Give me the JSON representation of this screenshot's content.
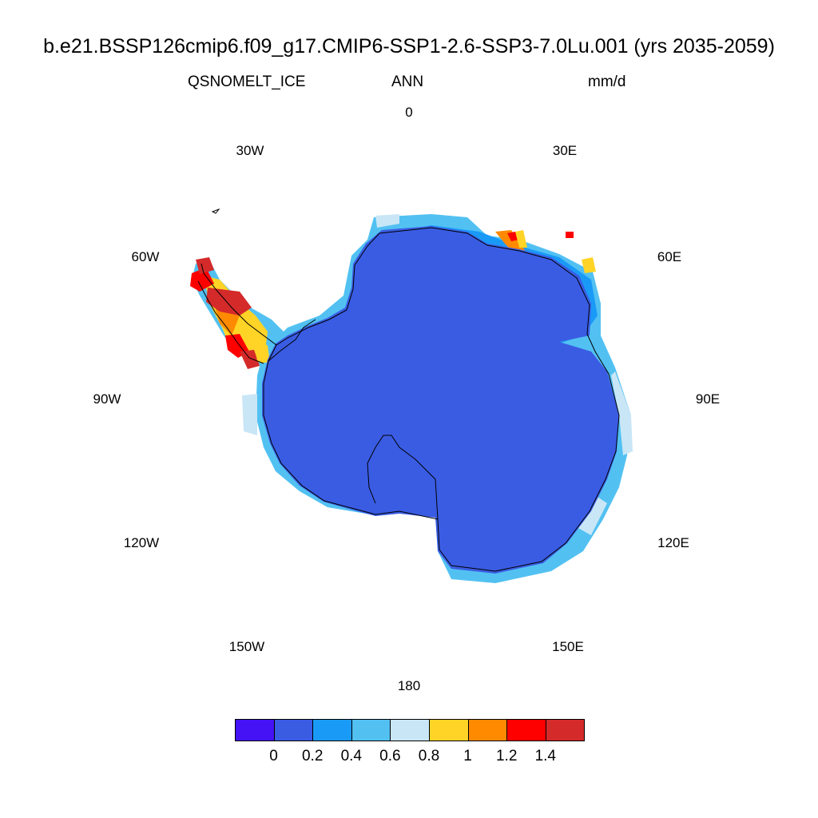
{
  "title": "b.e21.BSSP126cmip6.f09_g17.CMIP6-SSP1-2.6-SSP3-7.0Lu.001 (yrs 2035-2059)",
  "variable": "QSNOMELT_ICE",
  "season": "ANN",
  "units": "mm/d",
  "longitude_labels": [
    "0",
    "30E",
    "60E",
    "90E",
    "120E",
    "150E",
    "180",
    "150W",
    "120W",
    "90W",
    "60W",
    "30W"
  ],
  "colorbar": {
    "colors": [
      "#4412f4",
      "#3a5ce3",
      "#1a9af7",
      "#52c1f2",
      "#c9e6f6",
      "#ffd426",
      "#ff8a00",
      "#ff0000",
      "#d42a2a"
    ],
    "tick_labels": [
      "0",
      "0.2",
      "0.4",
      "0.6",
      "0.8",
      "1",
      "1.2",
      "1.4"
    ]
  },
  "map": {
    "projection": "south polar stereographic",
    "region": "Antarctica",
    "interior_color": "#3a5ce3",
    "coast_colors": [
      "#1a9af7",
      "#52c1f2",
      "#c9e6f6"
    ],
    "peninsula_colors": [
      "#ff0000",
      "#d42a2a",
      "#ffd426",
      "#ff8a00"
    ]
  }
}
